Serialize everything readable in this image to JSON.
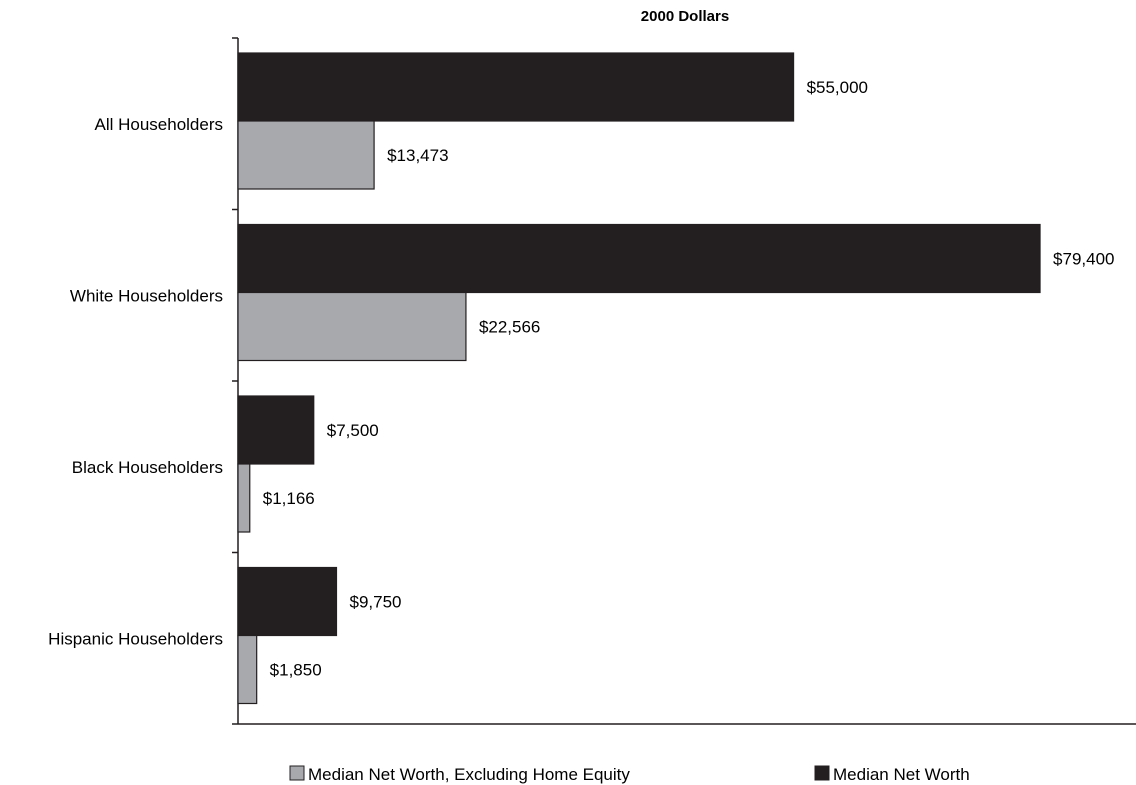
{
  "chart_data": {
    "type": "bar",
    "orientation": "horizontal",
    "title": "2000 Dollars",
    "categories": [
      "All Householders",
      "White Householders",
      "Black Householders",
      "Hispanic Householders"
    ],
    "series": [
      {
        "name": "Median Net Worth",
        "color": "#231f20",
        "values": [
          55000,
          79400,
          7500,
          9750
        ],
        "labels": [
          "$55,000",
          "$79,400",
          "$7,500",
          "$9,750"
        ]
      },
      {
        "name": "Median Net Worth, Excluding Home Equity",
        "color": "#a7a9ac",
        "values": [
          13473,
          22566,
          1166,
          1850
        ],
        "labels": [
          "$13,473",
          "$22,566",
          "$1,166",
          "$1,850"
        ]
      }
    ],
    "xlim": [
      0,
      88900
    ],
    "grid": false,
    "legend_position": "bottom",
    "legend_order": [
      "Median Net Worth, Excluding Home Equity",
      "Median Net Worth"
    ]
  }
}
